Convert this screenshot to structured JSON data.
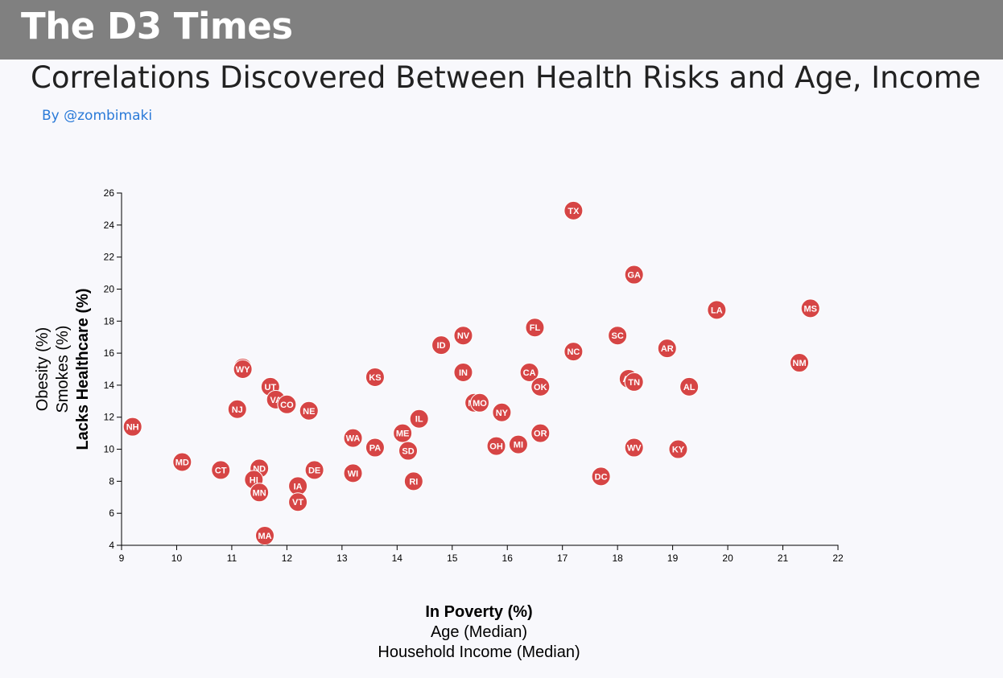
{
  "header": {
    "brand": "The D3 Times",
    "headline": "Correlations Discovered Between Health Risks and Age, Income",
    "byline": "By @zombimaki"
  },
  "colors": {
    "navbar": "#808080",
    "marker": "#d64545",
    "byline": "#2a7ad8"
  },
  "chart_data": {
    "type": "scatter",
    "title": "",
    "xlabel": "In Poverty (%)",
    "ylabel": "Lacks Healthcare (%)",
    "x_axis_options": [
      {
        "label": "In Poverty (%)",
        "active": true
      },
      {
        "label": "Age (Median)",
        "active": false
      },
      {
        "label": "Household Income (Median)",
        "active": false
      }
    ],
    "y_axis_options": [
      {
        "label": "Lacks Healthcare (%)",
        "active": true
      },
      {
        "label": "Smokes (%)",
        "active": false
      },
      {
        "label": "Obesity (%)",
        "active": false
      }
    ],
    "xlim": [
      9,
      22
    ],
    "ylim": [
      4,
      26
    ],
    "x_ticks": [
      9,
      10,
      11,
      12,
      13,
      14,
      15,
      16,
      17,
      18,
      19,
      20,
      21,
      22
    ],
    "y_ticks": [
      4,
      6,
      8,
      10,
      12,
      14,
      16,
      18,
      20,
      22,
      24,
      26
    ],
    "grid": false,
    "points": [
      {
        "label": "TX",
        "x": 17.2,
        "y": 24.9
      },
      {
        "label": "GA",
        "x": 18.3,
        "y": 20.9
      },
      {
        "label": "MS",
        "x": 21.5,
        "y": 18.8
      },
      {
        "label": "LA",
        "x": 19.8,
        "y": 18.7
      },
      {
        "label": "FL",
        "x": 16.5,
        "y": 17.6
      },
      {
        "label": "NV",
        "x": 15.2,
        "y": 17.1
      },
      {
        "label": "SC",
        "x": 18.0,
        "y": 17.1
      },
      {
        "label": "ID",
        "x": 14.8,
        "y": 16.5
      },
      {
        "label": "AR",
        "x": 18.9,
        "y": 16.3
      },
      {
        "label": "NC",
        "x": 17.2,
        "y": 16.1
      },
      {
        "label": "NM",
        "x": 21.3,
        "y": 15.4
      },
      {
        "label": "AK",
        "x": 11.2,
        "y": 15.1
      },
      {
        "label": "WY",
        "x": 11.2,
        "y": 15.0
      },
      {
        "label": "IN",
        "x": 15.2,
        "y": 14.8
      },
      {
        "label": "CA",
        "x": 16.4,
        "y": 14.8
      },
      {
        "label": "KS",
        "x": 13.6,
        "y": 14.5
      },
      {
        "label": "AZ",
        "x": 18.2,
        "y": 14.4
      },
      {
        "label": "TN",
        "x": 18.3,
        "y": 14.2
      },
      {
        "label": "OK",
        "x": 16.6,
        "y": 13.9
      },
      {
        "label": "AL",
        "x": 19.3,
        "y": 13.9
      },
      {
        "label": "UT",
        "x": 11.7,
        "y": 13.9
      },
      {
        "label": "VA",
        "x": 11.8,
        "y": 13.1
      },
      {
        "label": "CO",
        "x": 12.0,
        "y": 12.8
      },
      {
        "label": "MT",
        "x": 15.4,
        "y": 12.9
      },
      {
        "label": "MO",
        "x": 15.5,
        "y": 12.9
      },
      {
        "label": "NJ",
        "x": 11.1,
        "y": 12.5
      },
      {
        "label": "NE",
        "x": 12.4,
        "y": 12.4
      },
      {
        "label": "NY",
        "x": 15.9,
        "y": 12.3
      },
      {
        "label": "IL",
        "x": 14.4,
        "y": 11.9
      },
      {
        "label": "NH",
        "x": 9.2,
        "y": 11.4
      },
      {
        "label": "ME",
        "x": 14.1,
        "y": 11.0
      },
      {
        "label": "OR",
        "x": 16.6,
        "y": 11.0
      },
      {
        "label": "WA",
        "x": 13.2,
        "y": 10.7
      },
      {
        "label": "OH",
        "x": 15.8,
        "y": 10.2
      },
      {
        "label": "MI",
        "x": 16.2,
        "y": 10.3
      },
      {
        "label": "PA",
        "x": 13.6,
        "y": 10.1
      },
      {
        "label": "WV",
        "x": 18.3,
        "y": 10.1
      },
      {
        "label": "KY",
        "x": 19.1,
        "y": 10.0
      },
      {
        "label": "SD",
        "x": 14.2,
        "y": 9.9
      },
      {
        "label": "MD",
        "x": 10.1,
        "y": 9.2
      },
      {
        "label": "ND",
        "x": 11.5,
        "y": 8.8
      },
      {
        "label": "CT",
        "x": 10.8,
        "y": 8.7
      },
      {
        "label": "DE",
        "x": 12.5,
        "y": 8.7
      },
      {
        "label": "WI",
        "x": 13.2,
        "y": 8.5
      },
      {
        "label": "DC",
        "x": 17.7,
        "y": 8.3
      },
      {
        "label": "HI",
        "x": 11.4,
        "y": 8.1
      },
      {
        "label": "RI",
        "x": 14.3,
        "y": 8.0
      },
      {
        "label": "IA",
        "x": 12.2,
        "y": 7.7
      },
      {
        "label": "MN",
        "x": 11.5,
        "y": 7.3
      },
      {
        "label": "VT",
        "x": 12.2,
        "y": 6.7
      },
      {
        "label": "MA",
        "x": 11.6,
        "y": 4.6
      }
    ]
  }
}
